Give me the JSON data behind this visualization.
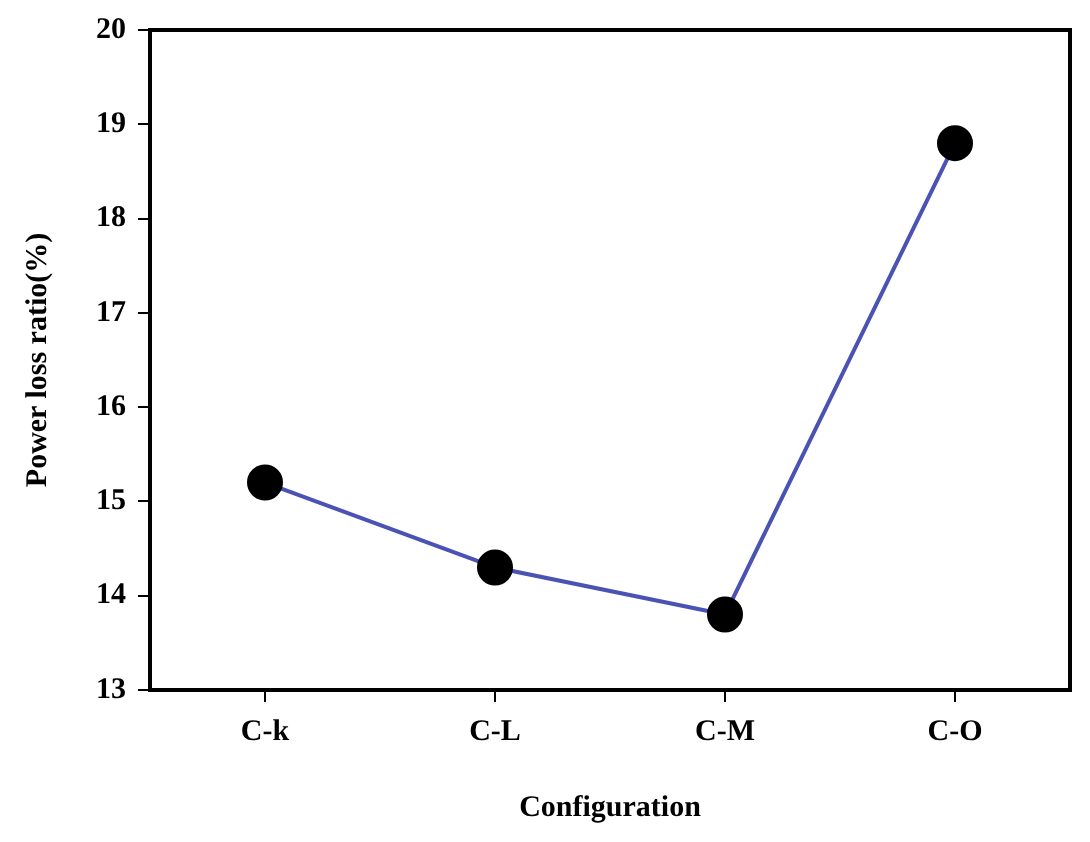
{
  "chart_data": {
    "type": "line",
    "xlabel": "Configuration",
    "ylabel": "Power loss ratio(%)",
    "categories": [
      "C-k",
      "C-L",
      "C-M",
      "C-O"
    ],
    "series": [
      {
        "color": "#4a52b4",
        "values": [
          15.2,
          14.3,
          13.8,
          18.8
        ]
      }
    ],
    "ylim": [
      13,
      20
    ],
    "yticks": [
      13,
      14,
      15,
      16,
      17,
      18,
      19,
      20
    ],
    "marker": "circle",
    "grid": false,
    "legend": false
  }
}
